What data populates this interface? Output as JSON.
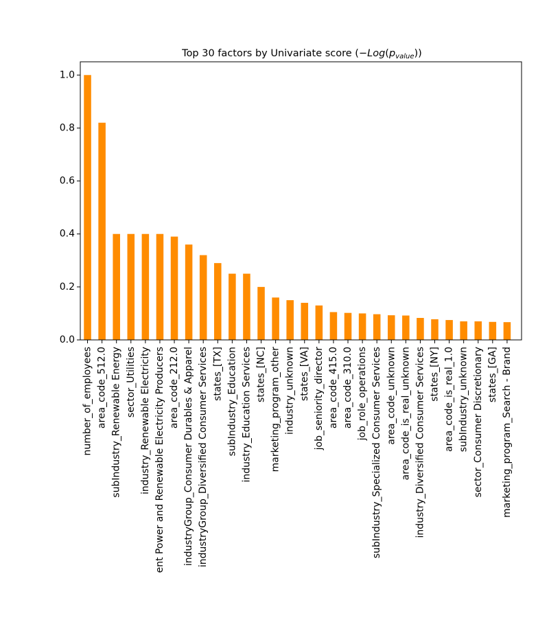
{
  "chart_data": {
    "type": "bar",
    "title": "Top 30 factors by Univariate score (−Log(p_value))",
    "title_parts": {
      "prefix": "Top 30 factors by Univariate score (",
      "math_minus": "−",
      "math_log": "Log",
      "math_open": "(",
      "math_p": "p",
      "math_sub": "value",
      "math_close": "))"
    },
    "xlabel": "",
    "ylabel": "",
    "ylim": [
      0,
      1.05
    ],
    "yticks": [
      "0.0",
      "0.2",
      "0.4",
      "0.6",
      "0.8",
      "1.0"
    ],
    "grid": false,
    "bar_color": "#ff8c00",
    "categories": [
      "number_of_employees",
      "area_code_512.0",
      "subIndustry_Renewable Energy",
      "sector_Utilities",
      "industry_Renewable Electricity",
      "ent Power and Renewable Electricity Producers",
      "area_code_212.0",
      "industryGroup_Consumer Durables & Apparel",
      "industryGroup_Diversified Consumer Services",
      "states_[TX]",
      "subIndustry_Education",
      "industry_Education Services",
      "states_[NC]",
      "marketing_program_other",
      "industry_unknown",
      "states_[VA]",
      "job_seniority_director",
      "area_code_415.0",
      "area_code_310.0",
      "job_role_operations",
      "subIndustry_Specialized Consumer Services",
      "area_code_unknown",
      "area_code_is_real_unknown",
      "industry_Diversified Consumer Services",
      "states_[NY]",
      "area_code_is_real_1.0",
      "subIndustry_unknown",
      "sector_Consumer Discretionary",
      "states_[GA]",
      "marketing_program_Search - Brand"
    ],
    "values": [
      1.0,
      0.82,
      0.4,
      0.4,
      0.4,
      0.4,
      0.39,
      0.36,
      0.32,
      0.29,
      0.25,
      0.25,
      0.2,
      0.16,
      0.15,
      0.14,
      0.13,
      0.105,
      0.102,
      0.1,
      0.097,
      0.093,
      0.092,
      0.083,
      0.078,
      0.075,
      0.07,
      0.07,
      0.068,
      0.067
    ]
  }
}
